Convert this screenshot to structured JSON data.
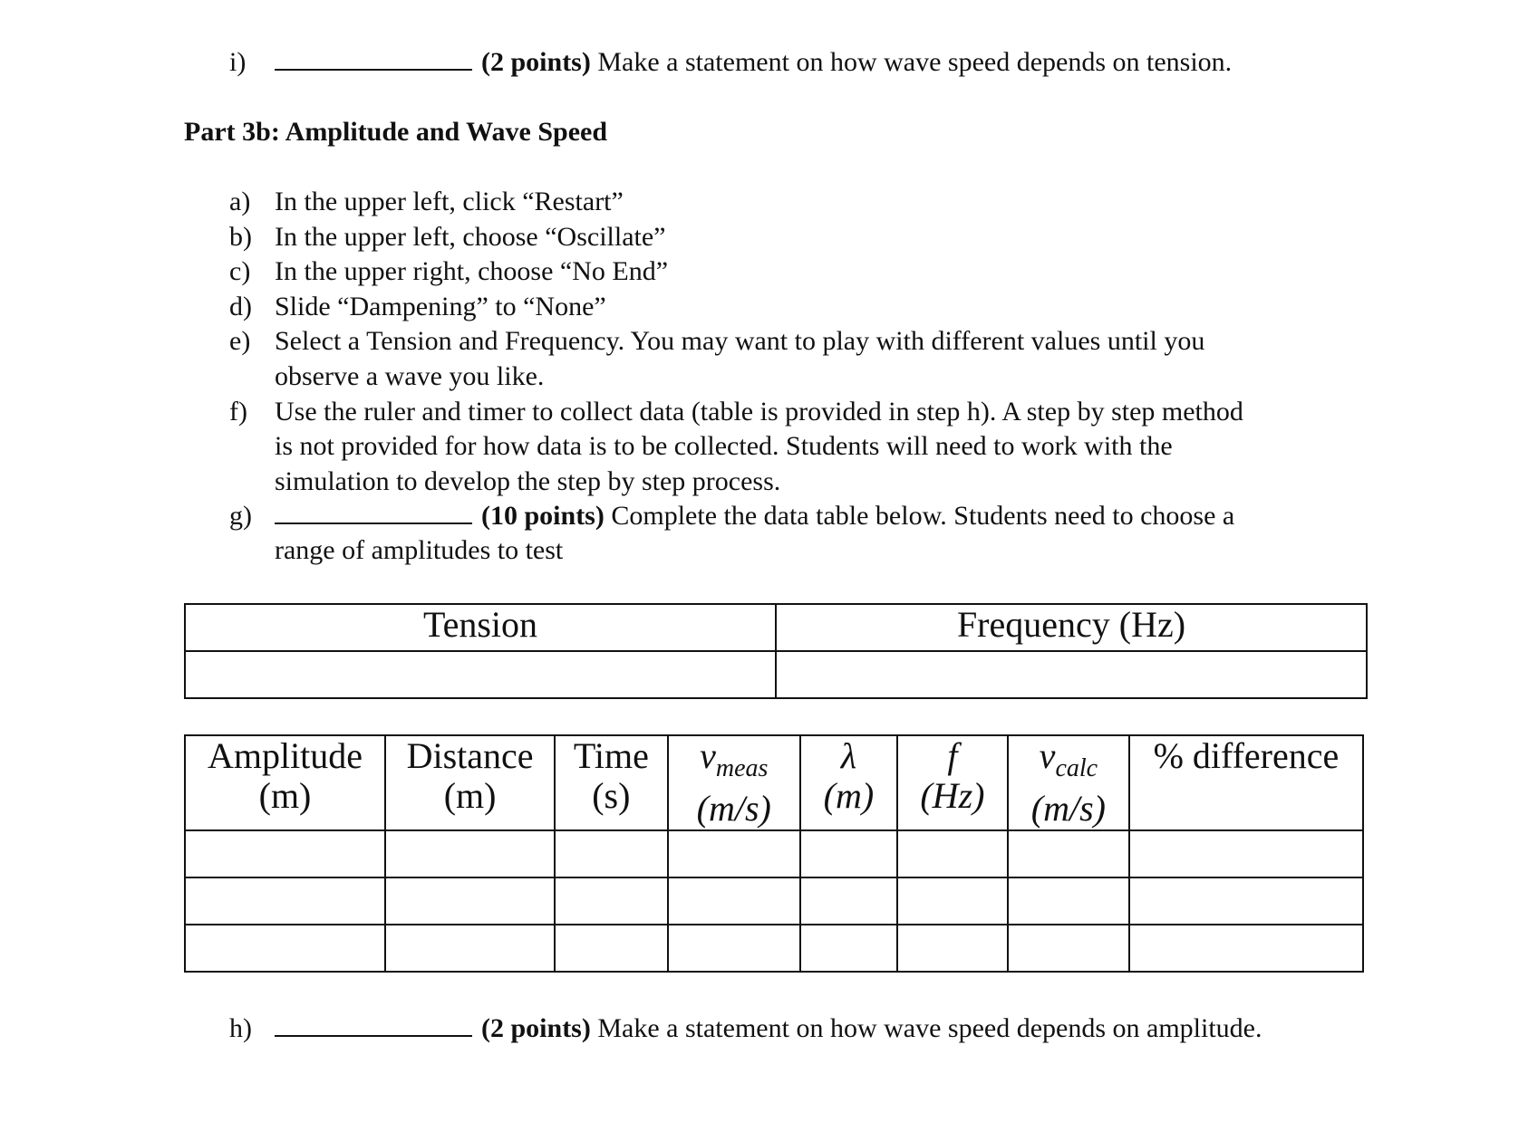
{
  "q_i": {
    "label": "i)",
    "points": "(2 points)",
    "text": "Make a statement on how wave speed depends on tension."
  },
  "part_heading": "Part 3b: Amplitude and Wave Speed",
  "steps": [
    {
      "label": "a)",
      "lines": [
        "In the upper left, click “Restart”"
      ]
    },
    {
      "label": "b)",
      "lines": [
        "In the upper left, choose “Oscillate”"
      ]
    },
    {
      "label": "c)",
      "lines": [
        "In the upper right, choose “No End”"
      ]
    },
    {
      "label": "d)",
      "lines": [
        "Slide “Dampening” to “None”"
      ]
    },
    {
      "label": "e)",
      "lines": [
        "Select a Tension and Frequency.  You may want to play with different values until you",
        "observe a wave you like."
      ]
    },
    {
      "label": "f)",
      "lines": [
        "Use the ruler and timer to collect data (table is provided in step h).  A step by step method",
        "is not provided for how data is to be collected.  Students will need to work with the",
        "simulation to develop the step by step process."
      ]
    }
  ],
  "q_g": {
    "label": "g)",
    "points": "(10 points)",
    "text": "Complete the data table below.  Students need to choose a",
    "text2": "range of amplitudes to test"
  },
  "table1": {
    "headers": [
      "Tension",
      "Frequency (Hz)"
    ]
  },
  "table2": {
    "headers": [
      {
        "main": "Amplitude",
        "unit": "(m)"
      },
      {
        "main": "Distance",
        "unit": "(m)"
      },
      {
        "main": "Time",
        "unit": "(s)"
      },
      {
        "main": "v",
        "sub": "meas",
        "unit": "(m/s)"
      },
      {
        "main": "λ",
        "unit": "(m)"
      },
      {
        "main": "f",
        "unit": "(Hz)"
      },
      {
        "main": "v",
        "sub": "calc",
        "unit": "(m/s)"
      },
      {
        "main": "% difference",
        "unit": ""
      }
    ]
  },
  "q_h": {
    "label": "h)",
    "points": "(2 points)",
    "text": "Make a statement on how wave speed depends on amplitude."
  }
}
